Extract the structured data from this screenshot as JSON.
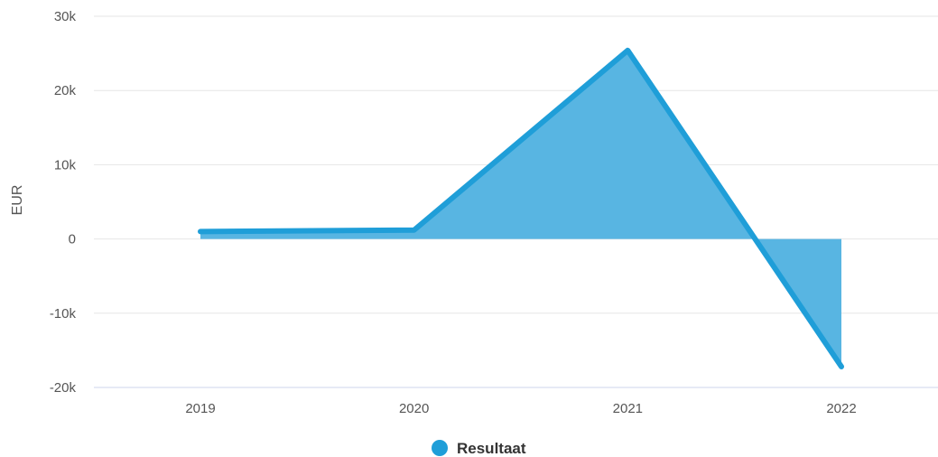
{
  "chart_data": {
    "type": "area",
    "title": "",
    "xlabel": "",
    "ylabel": "EUR",
    "categories": [
      "2019",
      "2020",
      "2021",
      "2022"
    ],
    "ylim": [
      -20000,
      30000
    ],
    "yticks": [
      -20000,
      -10000,
      0,
      10000,
      20000,
      30000
    ],
    "ytick_labels": [
      "-20k",
      "-10k",
      "0",
      "10k",
      "20k",
      "30k"
    ],
    "series": [
      {
        "name": "Resultaat",
        "color": "#1f9ed8",
        "fill_color": "#58b5e2",
        "values": [
          1000,
          1200,
          25400,
          -17200
        ]
      }
    ],
    "grid": true,
    "legend_position": "bottom-center"
  }
}
